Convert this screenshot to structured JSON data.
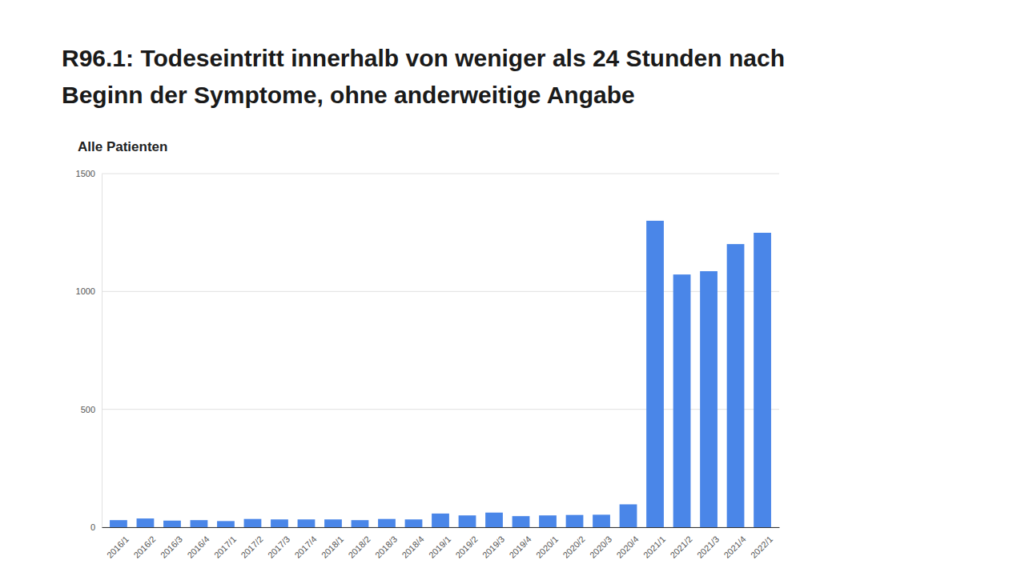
{
  "chart_data": {
    "type": "bar",
    "title": "R96.1: Todeseintritt innerhalb von weniger als 24 Stunden nach Beginn der Symptome, ohne anderweitige Angabe",
    "subtitle": "Alle Patienten",
    "categories": [
      "2016/1",
      "2016/2",
      "2016/3",
      "2016/4",
      "2017/1",
      "2017/2",
      "2017/3",
      "2017/4",
      "2018/1",
      "2018/2",
      "2018/3",
      "2018/4",
      "2019/1",
      "2019/2",
      "2019/3",
      "2019/4",
      "2020/1",
      "2020/2",
      "2020/3",
      "2020/4",
      "2021/1",
      "2021/2",
      "2021/3",
      "2021/4",
      "2022/1"
    ],
    "values": [
      30,
      37,
      28,
      30,
      26,
      35,
      33,
      33,
      33,
      30,
      35,
      33,
      58,
      50,
      62,
      47,
      50,
      52,
      53,
      97,
      1300,
      1072,
      1086,
      1201,
      1249
    ],
    "color": "#4a86e8",
    "ylim": [
      0,
      1500
    ],
    "yticks": [
      0,
      500,
      1000,
      1500
    ],
    "grid": true
  }
}
